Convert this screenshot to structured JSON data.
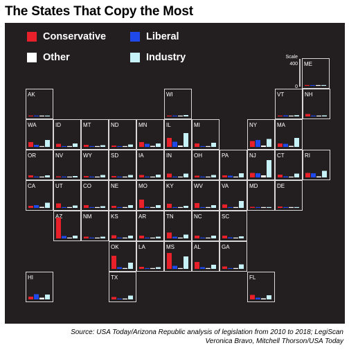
{
  "title": "The States That Copy the Most",
  "legend": [
    {
      "label": "Conservative",
      "color": "#e8202a"
    },
    {
      "label": "Liberal",
      "color": "#1f49e8"
    },
    {
      "label": "Other",
      "color": "#ffffff"
    },
    {
      "label": "Industry",
      "color": "#c7f2f8"
    }
  ],
  "scale": {
    "label": "Scale",
    "max_tick": "400",
    "min_tick": "0"
  },
  "source_line1": "Source: USA Today/Arizona Republic analysis of legislation from 2010 to 2018; LegiScan",
  "source_line2": "Veronica Bravo, Mitchell Thorson/USA Today",
  "chart_data": {
    "type": "bar",
    "title": "The States That Copy the Most",
    "series_names": [
      "Conservative",
      "Liberal",
      "Other",
      "Industry"
    ],
    "ylim": [
      0,
      400
    ],
    "layout": "tile-grid map of US states",
    "states": [
      {
        "code": "ME",
        "values": [
          10,
          10,
          5,
          12
        ]
      },
      {
        "code": "AK",
        "values": [
          8,
          12,
          5,
          12
        ]
      },
      {
        "code": "WI",
        "values": [
          10,
          8,
          5,
          20
        ]
      },
      {
        "code": "VT",
        "values": [
          10,
          15,
          5,
          18
        ]
      },
      {
        "code": "NH",
        "values": [
          35,
          12,
          10,
          15
        ]
      },
      {
        "code": "WA",
        "values": [
          70,
          30,
          10,
          100
        ]
      },
      {
        "code": "ID",
        "values": [
          45,
          8,
          5,
          50
        ]
      },
      {
        "code": "MT",
        "values": [
          30,
          8,
          5,
          25
        ]
      },
      {
        "code": "ND",
        "values": [
          20,
          5,
          5,
          35
        ]
      },
      {
        "code": "MN",
        "values": [
          70,
          45,
          15,
          50
        ]
      },
      {
        "code": "IL",
        "values": [
          130,
          75,
          20,
          200
        ]
      },
      {
        "code": "MI",
        "values": [
          50,
          10,
          5,
          60
        ]
      },
      {
        "code": "NY",
        "values": [
          85,
          100,
          20,
          115
        ]
      },
      {
        "code": "MA",
        "values": [
          50,
          45,
          15,
          130
        ]
      },
      {
        "code": "OR",
        "values": [
          30,
          10,
          5,
          30
        ]
      },
      {
        "code": "NV",
        "values": [
          15,
          10,
          5,
          20
        ]
      },
      {
        "code": "WY",
        "values": [
          20,
          5,
          5,
          35
        ]
      },
      {
        "code": "SD",
        "values": [
          20,
          5,
          5,
          35
        ]
      },
      {
        "code": "IA",
        "values": [
          35,
          8,
          5,
          40
        ]
      },
      {
        "code": "IN",
        "values": [
          55,
          10,
          5,
          55
        ]
      },
      {
        "code": "OH",
        "values": [
          25,
          10,
          5,
          35
        ]
      },
      {
        "code": "PA",
        "values": [
          30,
          25,
          8,
          60
        ]
      },
      {
        "code": "NJ",
        "values": [
          65,
          60,
          30,
          250
        ]
      },
      {
        "code": "CT",
        "values": [
          40,
          15,
          10,
          55
        ]
      },
      {
        "code": "RI",
        "values": [
          65,
          60,
          15,
          95
        ]
      },
      {
        "code": "CA",
        "values": [
          30,
          40,
          15,
          75
        ]
      },
      {
        "code": "UT",
        "values": [
          65,
          10,
          5,
          35
        ]
      },
      {
        "code": "CO",
        "values": [
          40,
          8,
          5,
          25
        ]
      },
      {
        "code": "NE",
        "values": [
          30,
          8,
          5,
          40
        ]
      },
      {
        "code": "MO",
        "values": [
          120,
          15,
          5,
          40
        ]
      },
      {
        "code": "KY",
        "values": [
          60,
          10,
          5,
          30
        ]
      },
      {
        "code": "WV",
        "values": [
          70,
          10,
          5,
          40
        ]
      },
      {
        "code": "VA",
        "values": [
          50,
          12,
          5,
          100
        ]
      },
      {
        "code": "MD",
        "values": [
          15,
          8,
          5,
          12
        ]
      },
      {
        "code": "DE",
        "values": [
          20,
          5,
          5,
          12
        ]
      },
      {
        "code": "AZ",
        "values": [
          300,
          35,
          10,
          40
        ]
      },
      {
        "code": "NM",
        "values": [
          25,
          10,
          5,
          25
        ]
      },
      {
        "code": "KS",
        "values": [
          45,
          10,
          5,
          40
        ]
      },
      {
        "code": "AR",
        "values": [
          40,
          10,
          5,
          25
        ]
      },
      {
        "code": "TN",
        "values": [
          85,
          25,
          5,
          55
        ]
      },
      {
        "code": "NC",
        "values": [
          40,
          10,
          5,
          40
        ]
      },
      {
        "code": "SC",
        "values": [
          40,
          15,
          5,
          30
        ]
      },
      {
        "code": "OK",
        "values": [
          190,
          25,
          10,
          90
        ]
      },
      {
        "code": "LA",
        "values": [
          30,
          10,
          5,
          25
        ]
      },
      {
        "code": "MS",
        "values": [
          230,
          45,
          10,
          180
        ]
      },
      {
        "code": "AL",
        "values": [
          100,
          25,
          10,
          60
        ]
      },
      {
        "code": "GA",
        "values": [
          35,
          10,
          10,
          65
        ]
      },
      {
        "code": "HI",
        "values": [
          40,
          75,
          25,
          70
        ]
      },
      {
        "code": "TX",
        "values": [
          35,
          8,
          5,
          55
        ]
      },
      {
        "code": "FL",
        "values": [
          65,
          25,
          15,
          60
        ]
      }
    ]
  }
}
